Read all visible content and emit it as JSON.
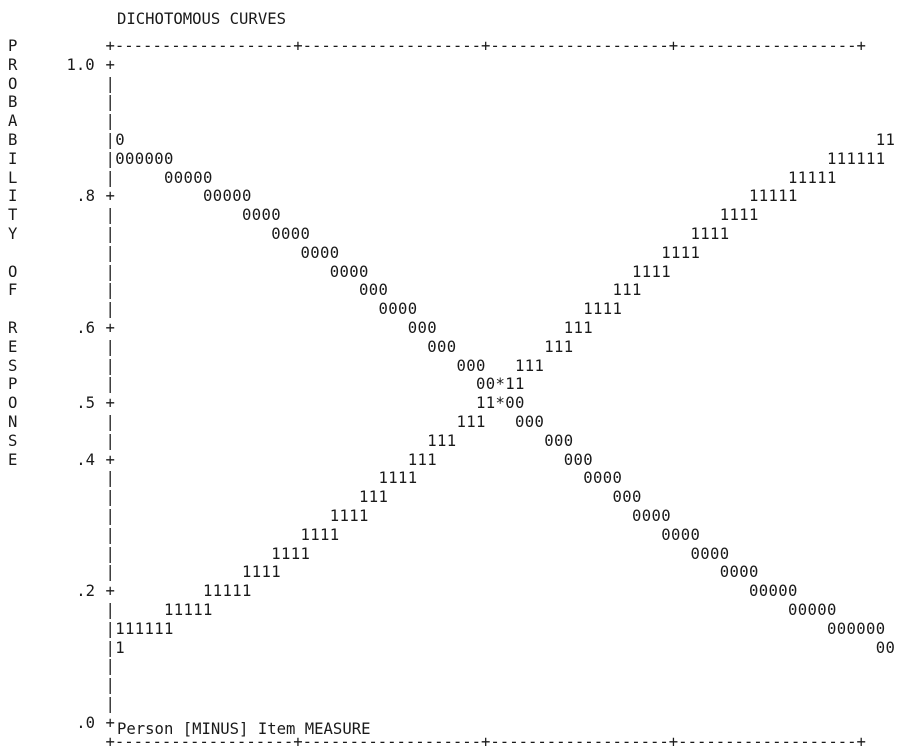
{
  "chart_data": {
    "type": "line",
    "title": "DICHOTOMOUS CURVES",
    "xlabel": "Person [MINUS] Item MEASURE",
    "ylabel": "PROBABILITY OF RESPONSE",
    "xlim": [
      -2,
      2
    ],
    "ylim": [
      0,
      1
    ],
    "x_ticks": [
      "-2",
      "-1",
      "0",
      "1",
      "2"
    ],
    "y_ticks": [
      "1.0",
      ".8",
      ".6",
      ".5",
      ".4",
      ".2",
      ".0"
    ],
    "crossing_marker": "***",
    "series": [
      {
        "name": "0",
        "marker": "0",
        "x": [
          -2,
          -1.6,
          -1.2,
          -0.8,
          -0.4,
          0,
          0.4,
          0.8,
          1.2,
          1.6,
          2
        ],
        "y": [
          0.88,
          0.83,
          0.77,
          0.69,
          0.6,
          0.5,
          0.4,
          0.31,
          0.23,
          0.17,
          0.12
        ]
      },
      {
        "name": "1",
        "marker": "1",
        "x": [
          -2,
          -1.6,
          -1.2,
          -0.8,
          -0.4,
          0,
          0.4,
          0.8,
          1.2,
          1.6,
          2
        ],
        "y": [
          0.12,
          0.17,
          0.23,
          0.31,
          0.4,
          0.5,
          0.6,
          0.69,
          0.77,
          0.83,
          0.88
        ]
      }
    ]
  }
}
